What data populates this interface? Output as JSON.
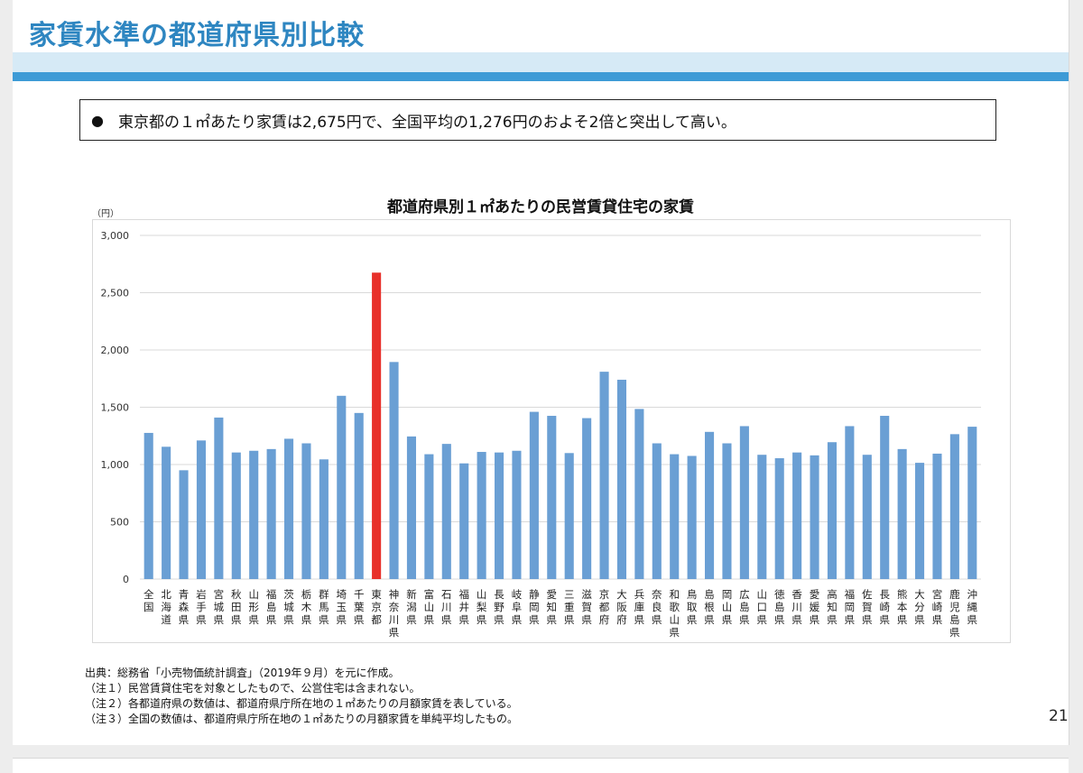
{
  "slide": {
    "title": "家賃水準の都道府県別比較",
    "page_number": "21"
  },
  "summary": {
    "bullet": "●",
    "text": "東京都の１㎡あたり家賃は2,675円で、全国平均の1,276円のおよそ2倍と突出して高い。"
  },
  "colors": {
    "title": "#2e86c1",
    "bar": "#6a9fd4",
    "highlight": "#e8302a",
    "grid": "#d9d9d9"
  },
  "chart_data": {
    "type": "bar",
    "title": "都道府県別１㎡あたりの民営賃貸住宅の家賃",
    "unit_label": "（円）",
    "ylim": [
      0,
      3000
    ],
    "yticks": [
      0,
      500,
      1000,
      1500,
      2000,
      2500,
      3000
    ],
    "ytick_labels": [
      "0",
      "500",
      "1,000",
      "1,500",
      "2,000",
      "2,500",
      "3,000"
    ],
    "grid": true,
    "highlight_category": "東京都",
    "categories": [
      "全国",
      "北海道",
      "青森県",
      "岩手県",
      "宮城県",
      "秋田県",
      "山形県",
      "福島県",
      "茨城県",
      "栃木県",
      "群馬県",
      "埼玉県",
      "千葉県",
      "東京都",
      "神奈川県",
      "新潟県",
      "富山県",
      "石川県",
      "福井県",
      "山梨県",
      "長野県",
      "岐阜県",
      "静岡県",
      "愛知県",
      "三重県",
      "滋賀県",
      "京都府",
      "大阪府",
      "兵庫県",
      "奈良県",
      "和歌山県",
      "鳥取県",
      "島根県",
      "岡山県",
      "広島県",
      "山口県",
      "徳島県",
      "香川県",
      "愛媛県",
      "高知県",
      "福岡県",
      "佐賀県",
      "長崎県",
      "熊本県",
      "大分県",
      "宮崎県",
      "鹿児島県",
      "沖縄県"
    ],
    "values": [
      1276,
      1155,
      950,
      1210,
      1410,
      1105,
      1120,
      1135,
      1225,
      1185,
      1045,
      1600,
      1450,
      2675,
      1895,
      1245,
      1090,
      1180,
      1010,
      1110,
      1105,
      1120,
      1460,
      1425,
      1100,
      1405,
      1810,
      1740,
      1485,
      1185,
      1090,
      1075,
      1285,
      1185,
      1335,
      1085,
      1055,
      1105,
      1080,
      1195,
      1335,
      1085,
      1425,
      1135,
      1015,
      1095,
      1265,
      1330
    ]
  },
  "notes": [
    "出典：総務省「小売物価統計調査」（2019年９月）を元に作成。",
    "（注１）民営賃貸住宅を対象としたもので、公営住宅は含まれない。",
    "（注２）各都道府県の数値は、都道府県庁所在地の１㎡あたりの月額家賃を表している。",
    "（注３）全国の数値は、都道府県庁所在地の１㎡あたりの月額家賃を単純平均したもの。"
  ]
}
